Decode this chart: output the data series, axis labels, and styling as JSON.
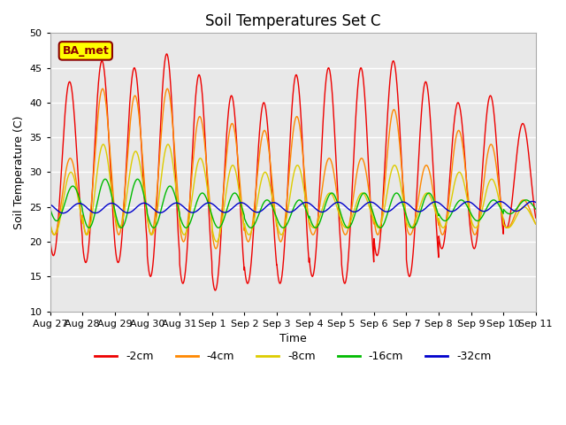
{
  "title": "Soil Temperatures Set C",
  "xlabel": "Time",
  "ylabel": "Soil Temperature (C)",
  "ylim": [
    10,
    50
  ],
  "n_days": 15,
  "bg_color": "#e8e8e8",
  "fig_bg": "#ffffff",
  "grid_color": "#ffffff",
  "annotation_text": "BA_met",
  "annotation_bg": "#ffff00",
  "annotation_border": "#8b0000",
  "colors": {
    "-2cm": "#ee0000",
    "-4cm": "#ff8800",
    "-8cm": "#ddcc00",
    "-16cm": "#00bb00",
    "-32cm": "#0000cc"
  },
  "tick_labels": [
    "Aug 27",
    "Aug 28",
    "Aug 29",
    "Aug 30",
    "Aug 31",
    "Sep 1",
    "Sep 2",
    "Sep 3",
    "Sep 4",
    "Sep 5",
    "Sep 6",
    "Sep 7",
    "Sep 8",
    "Sep 9",
    "Sep 10",
    "Sep 11"
  ],
  "yticks": [
    10,
    15,
    20,
    25,
    30,
    35,
    40,
    45,
    50
  ],
  "legend_labels": [
    "-2cm",
    "-4cm",
    "-8cm",
    "-16cm",
    "-32cm"
  ],
  "peak2cm": [
    43,
    46,
    45,
    47,
    44,
    41,
    40,
    44,
    45,
    45,
    46,
    43,
    40,
    41,
    37
  ],
  "trough2cm": [
    18,
    17,
    17,
    15,
    14,
    13,
    14,
    14,
    15,
    14,
    18,
    15,
    19,
    19,
    22
  ],
  "peak4cm": [
    32,
    42,
    41,
    42,
    38,
    37,
    36,
    38,
    32,
    32,
    39,
    31,
    36,
    34,
    26
  ],
  "trough4cm": [
    21,
    21,
    21,
    21,
    20,
    19,
    20,
    20,
    21,
    21,
    21,
    21,
    21,
    21,
    22
  ],
  "peak8cm": [
    30,
    34,
    33,
    34,
    32,
    31,
    30,
    31,
    27,
    27,
    31,
    27,
    30,
    29,
    25
  ],
  "trough8cm": [
    21,
    21,
    22,
    21,
    21,
    20,
    21,
    21,
    22,
    22,
    22,
    22,
    22,
    22,
    22
  ],
  "peak16cm": [
    28,
    29,
    29,
    28,
    27,
    27,
    26,
    26,
    27,
    27,
    27,
    27,
    26,
    26,
    26
  ],
  "trough16cm": [
    23,
    22,
    22,
    22,
    22,
    22,
    22,
    22,
    22,
    22,
    22,
    22,
    23,
    23,
    24
  ],
  "mean32cm": 24.8,
  "amp32cm": 0.7,
  "phase32cm": 0.65
}
